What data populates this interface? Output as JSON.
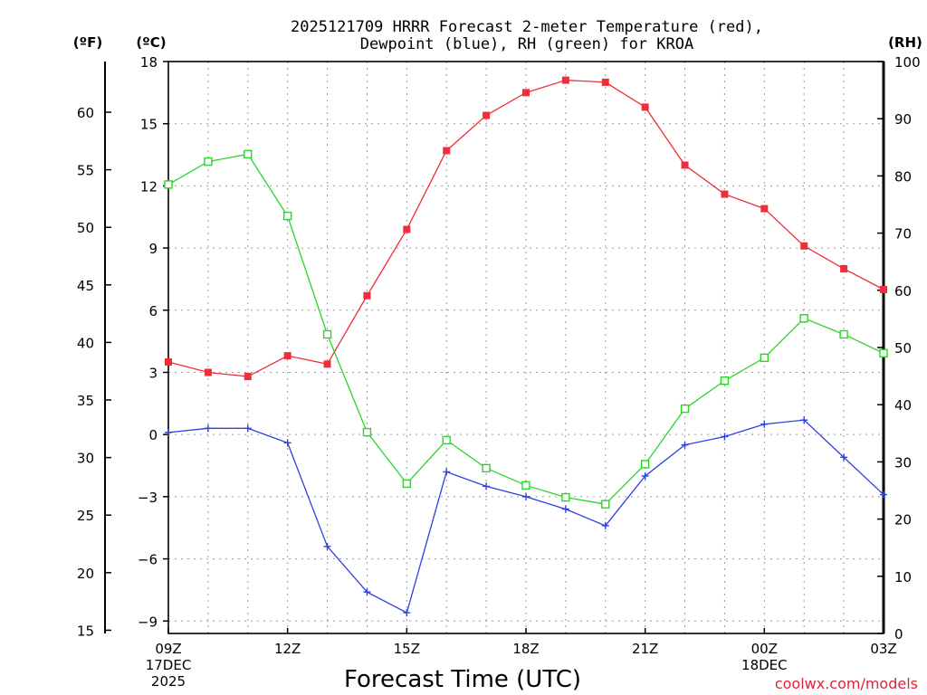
{
  "chart_data": {
    "type": "line",
    "title_line1": "2025121709 HRRR Forecast 2-meter Temperature (red),",
    "title_line2": "Dewpoint (blue), RH (green) for KROA",
    "xlabel": "Forecast Time (UTC)",
    "credit": "coolwx.com/models",
    "y_left_f_unit": "(ºF)",
    "y_left_c_unit": "(ºC)",
    "y_right_unit": "(RH)",
    "ylim_c": [
      -9.6,
      18
    ],
    "ylim_rh": [
      0,
      100
    ],
    "y_ticks_c": [
      "18",
      "15",
      "12",
      "9",
      "6",
      "3",
      "0",
      "−3",
      "−6",
      "−9"
    ],
    "y_tick_values_c": [
      18,
      15,
      12,
      9,
      6,
      3,
      0,
      -3,
      -6,
      -9
    ],
    "y_ticks_f": [
      "60",
      "55",
      "50",
      "45",
      "40",
      "35",
      "30",
      "25",
      "20",
      "15"
    ],
    "y_tick_values_f": [
      60,
      55,
      50,
      45,
      40,
      35,
      30,
      25,
      20,
      15
    ],
    "y_ticks_rh": [
      "100",
      "90",
      "80",
      "70",
      "60",
      "50",
      "40",
      "30",
      "20",
      "10",
      "0"
    ],
    "y_tick_values_rh": [
      100,
      90,
      80,
      70,
      60,
      50,
      40,
      30,
      20,
      10,
      0
    ],
    "x_hours": [
      9,
      10,
      11,
      12,
      13,
      14,
      15,
      16,
      17,
      18,
      19,
      20,
      21,
      22,
      23,
      24,
      25,
      26,
      27
    ],
    "x_tick_labels": [
      {
        "hour": 9,
        "lines": [
          "09Z",
          "17DEC",
          "2025"
        ]
      },
      {
        "hour": 12,
        "lines": [
          "12Z"
        ]
      },
      {
        "hour": 15,
        "lines": [
          "15Z"
        ]
      },
      {
        "hour": 18,
        "lines": [
          "18Z"
        ]
      },
      {
        "hour": 21,
        "lines": [
          "21Z"
        ]
      },
      {
        "hour": 24,
        "lines": [
          "00Z",
          "18DEC"
        ]
      },
      {
        "hour": 27,
        "lines": [
          "03Z"
        ]
      }
    ],
    "series": [
      {
        "name": "2-meter Temperature",
        "axis": "c",
        "color": "#f02d3a",
        "marker": "filled-square",
        "values": [
          3.5,
          3.0,
          2.8,
          3.8,
          3.4,
          6.7,
          9.9,
          13.7,
          15.4,
          16.5,
          17.1,
          17.0,
          15.8,
          13.0,
          11.6,
          10.9,
          9.1,
          8.0,
          7.0
        ]
      },
      {
        "name": "Dewpoint",
        "axis": "c",
        "color": "#2a40e0",
        "marker": "plus",
        "values": [
          0.1,
          0.3,
          0.3,
          -0.4,
          -5.4,
          -7.6,
          -8.6,
          -1.8,
          -2.5,
          -3.0,
          -3.6,
          -4.4,
          -2.0,
          -0.5,
          -0.1,
          0.5,
          0.7,
          -1.1,
          -2.9
        ]
      },
      {
        "name": "RH",
        "axis": "rh",
        "color": "#28d628",
        "marker": "open-square",
        "values": [
          78.5,
          82.5,
          83.8,
          73.0,
          52.3,
          35.2,
          26.2,
          33.8,
          28.9,
          25.9,
          23.8,
          22.6,
          29.6,
          39.3,
          44.2,
          48.2,
          55.1,
          52.3,
          49.0
        ]
      }
    ]
  }
}
